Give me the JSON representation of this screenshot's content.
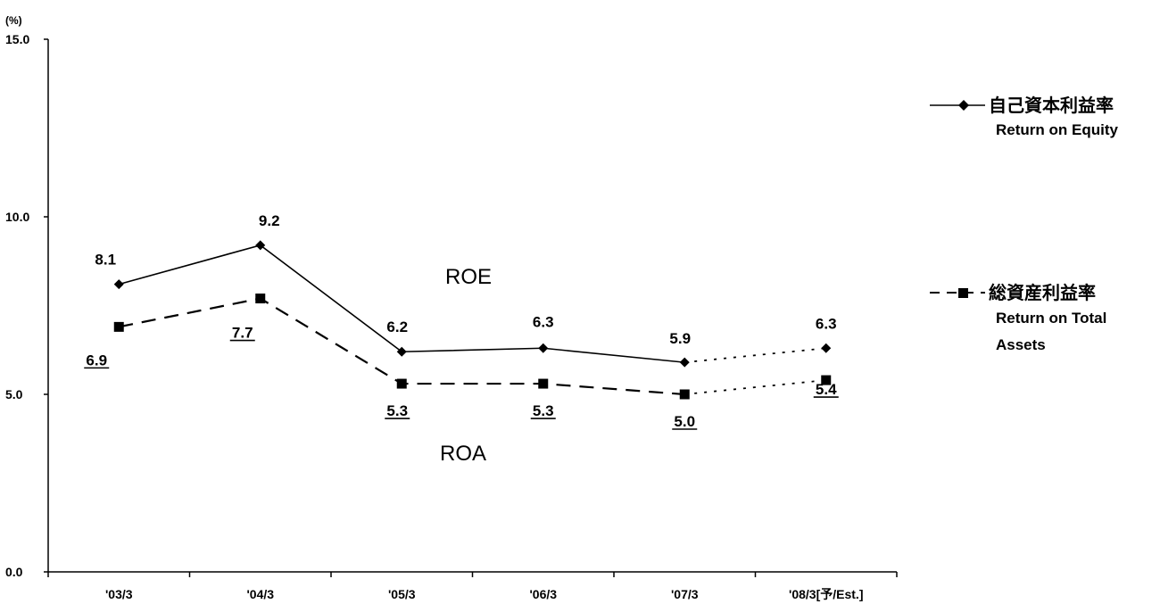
{
  "chart_data": {
    "type": "line",
    "unit_label": "(%)",
    "categories": [
      "'03/3",
      "'04/3",
      "'05/3",
      "'06/3",
      "'07/3",
      "'08/3[予/Est.]"
    ],
    "ylim": [
      0,
      15
    ],
    "yticks": [
      0,
      5,
      10,
      15
    ],
    "ytick_labels": [
      "0.0",
      "5.0",
      "10.0",
      "15.0"
    ],
    "grid": false,
    "legend_position": "right",
    "estimate_from_index": 4,
    "series": [
      {
        "name": "自己資本利益率",
        "name_en": "Return on Equity",
        "tag": "ROE",
        "values": [
          8.1,
          9.2,
          6.2,
          6.3,
          5.9,
          6.3
        ],
        "labels": [
          "8.1",
          "9.2",
          "6.2",
          "6.3",
          "5.9",
          "6.3"
        ],
        "line_style": "solid",
        "marker": "diamond",
        "label_underlined": false
      },
      {
        "name": "総資産利益率",
        "name_en": "Return on Total Assets",
        "tag": "ROA",
        "values": [
          6.9,
          7.7,
          5.3,
          5.3,
          5.0,
          5.4
        ],
        "labels": [
          "6.9",
          "7.7",
          "5.3",
          "5.3",
          "5.0",
          "5.4"
        ],
        "line_style": "dashed",
        "marker": "square",
        "label_underlined": true
      }
    ]
  },
  "legend": {
    "roe_title": "自己資本利益率",
    "roe_sub1": "Return on Equity",
    "roa_title": "総資産利益率",
    "roa_sub1": "Return on Total",
    "roa_sub2": "Assets"
  },
  "annotations": {
    "roe_tag": "ROE",
    "roa_tag": "ROA"
  },
  "colors": {
    "line": "#000000",
    "background": "#ffffff"
  }
}
